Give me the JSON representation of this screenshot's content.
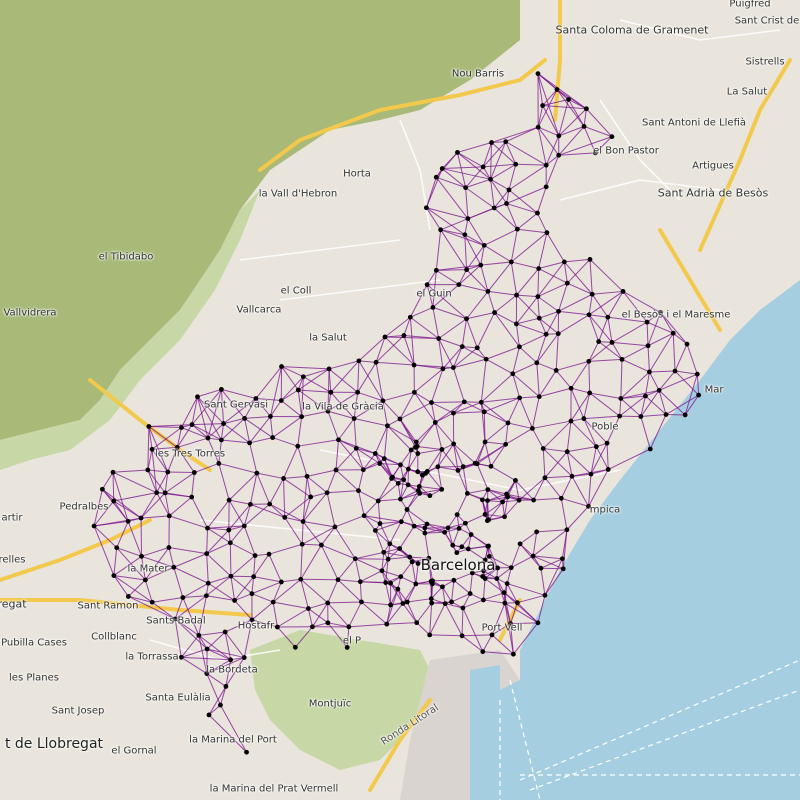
{
  "map": {
    "colors": {
      "sea": "#a5cfe0",
      "land": "#e9e5dd",
      "hills": "#a8b978",
      "park": "#c7d7a6",
      "port": "#d9d4cf",
      "motorway": "#f2c94c",
      "graph_edge": "#7a0f8c",
      "graph_node": "#000000"
    },
    "labels": {
      "santa_coloma": "Santa Coloma de Gramenet",
      "puigfred": "Puigfred",
      "sant_crist": "Sant Crist de",
      "sistrells": "Sistrells",
      "la_salut_n": "La Salut",
      "nou_barris": "Nou Barris",
      "sant_antoni_llefia": "Sant Antoni de Llefià",
      "el_bon_pastor": "el Bon Pastor",
      "artigues": "Artigues",
      "sant_adria": "Sant Adrià de Besòs",
      "horta": "Horta",
      "vall_hebron": "la Vall d'Hebron",
      "tibidabo": "el Tibidabo",
      "el_coll": "el Coll",
      "vallcarca": "Vallcarca",
      "la_salut": "la Salut",
      "el_guinardo": "el Guin",
      "vallvidrera": "Vallvidrera",
      "besos_maresme": "el Besòs i el Maresme",
      "sant_gervasi": "Sant Gervasi",
      "vila_gracia": "la Vila de Gràcia",
      "mar": "Mar",
      "poblenou": "Poble",
      "les_tres_torres": "les Tres Torres",
      "pedralbes": "Pedralbes",
      "martir": "artir",
      "relles": "relles",
      "barcelona": "Barcelona",
      "olimpica": "mpica",
      "la_maternitat": "la Mater",
      "sant_ramon": "Sant Ramon",
      "sants_badal": "Sants-Badal",
      "hostafrancs": "Hostafr",
      "el_poble_sec": "el P",
      "port_vell": "Port Vell",
      "regat": "regat",
      "pubilla_cases": "Pubilla Cases",
      "collblanc": "Collblanc",
      "la_torrassa": "la Torrassa",
      "les_planes": "les Planes",
      "la_bordeta": "la Bordeta",
      "santa_eulalia": "Santa Eulàlia",
      "sant_josep": "Sant Josep",
      "montjuic": "Montjuïc",
      "llobregat": "t de Llobregat",
      "el_gornal": "el Gornal",
      "marina_port": "la Marina del Port",
      "ronda_litoral": "Ronda Litoral",
      "marina_prat": "la Marina del Prat Vermell"
    }
  }
}
